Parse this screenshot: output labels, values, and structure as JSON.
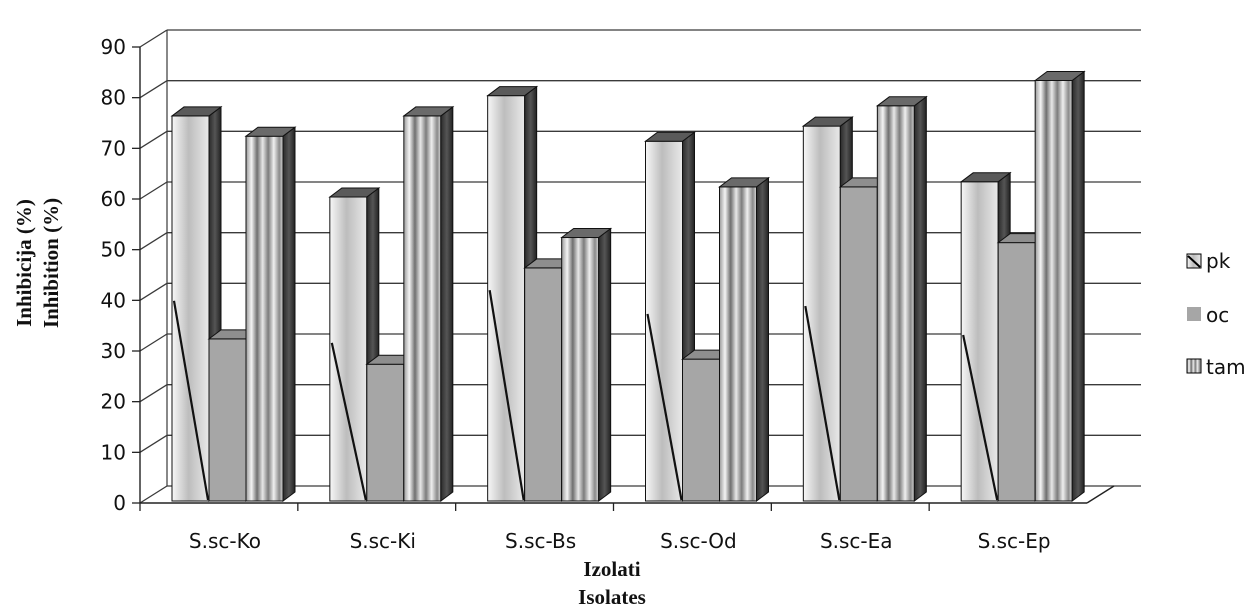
{
  "chart_data": {
    "type": "bar",
    "categories": [
      "S.sc-Ko",
      "S.sc-Ki",
      "S.sc-Bs",
      "S.sc-Od",
      "S.sc-Ea",
      "S.sc-Ep"
    ],
    "series": [
      {
        "name": "pk",
        "values": [
          76,
          60,
          80,
          71,
          74,
          63
        ]
      },
      {
        "name": "oc",
        "values": [
          32,
          27,
          46,
          28,
          62,
          51
        ]
      },
      {
        "name": "tam",
        "values": [
          72,
          76,
          52,
          62,
          78,
          83
        ]
      }
    ],
    "ylim": [
      0,
      90
    ],
    "yticks": [
      0,
      10,
      20,
      30,
      40,
      50,
      60,
      70,
      80,
      90
    ],
    "ylabel_line1": "Inhibicija  (%)",
    "ylabel_line2": "Inhibition  (%)",
    "xlabel_line1": "Izolati",
    "xlabel_line2": "Isolates",
    "grid": true,
    "legend_position": "right",
    "projection": "3d-clustered-column"
  }
}
